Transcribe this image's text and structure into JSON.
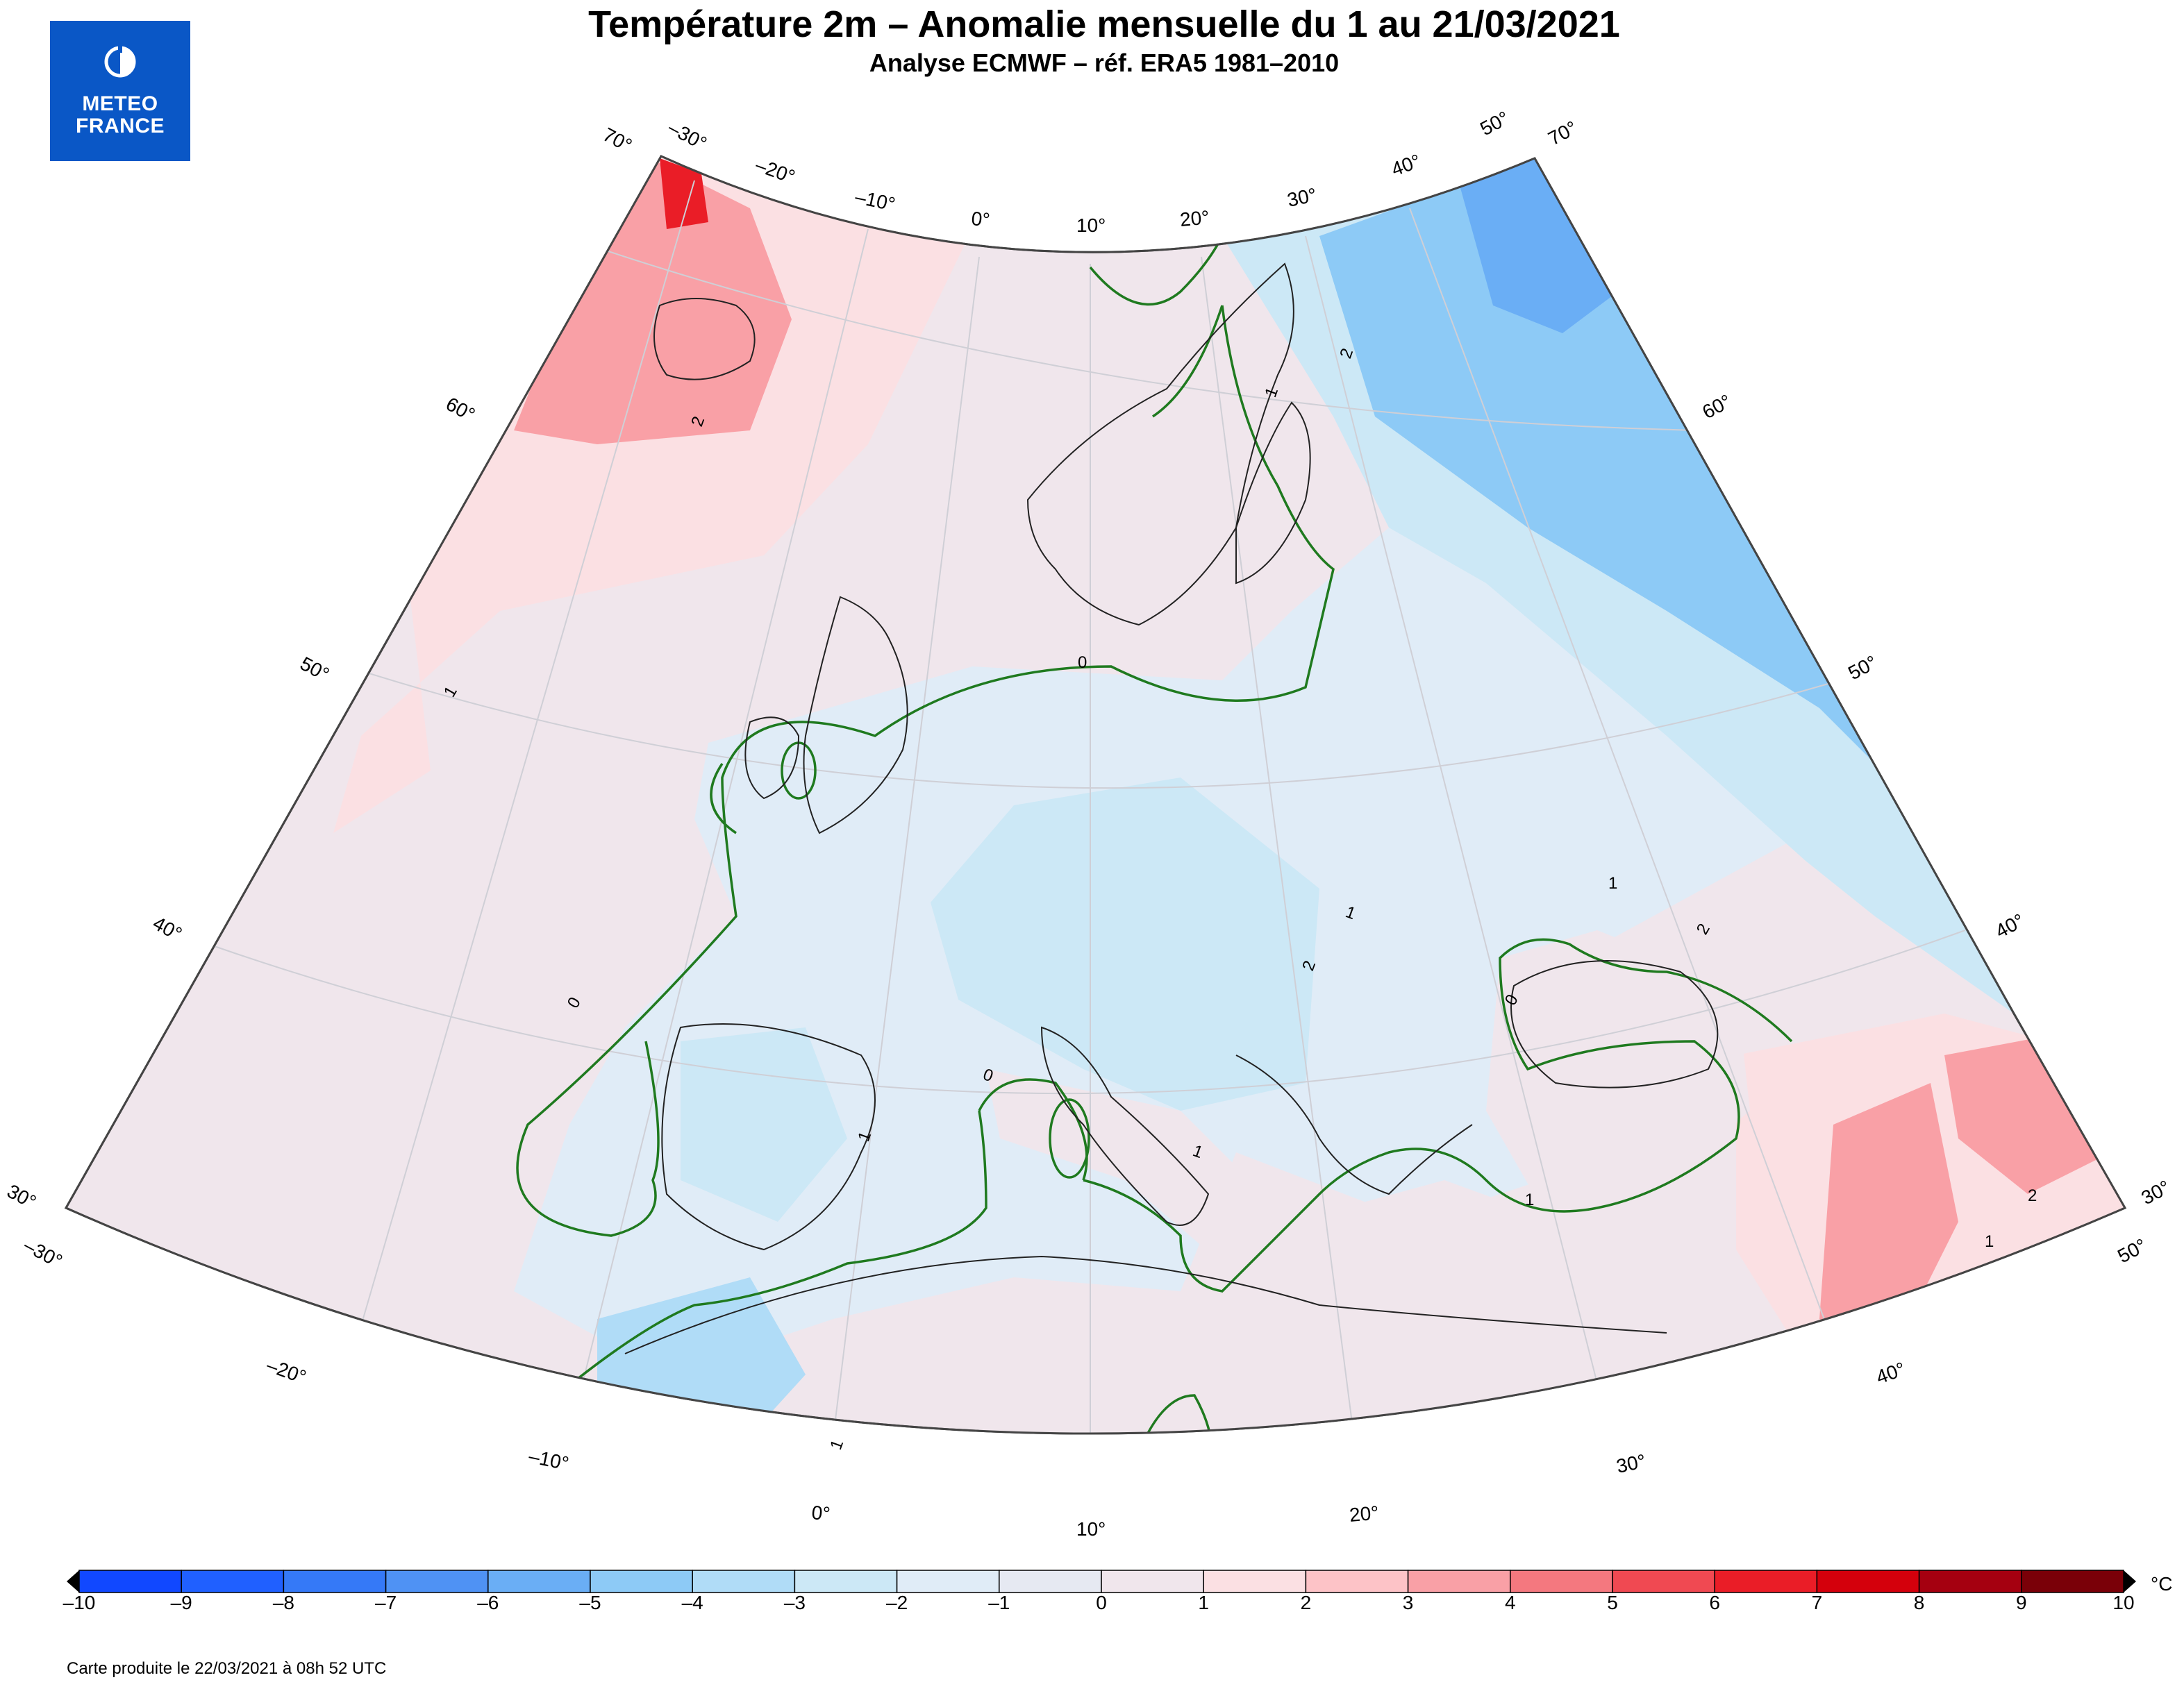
{
  "logo": {
    "line1": "METEO",
    "line2": "FRANCE"
  },
  "title": "Température 2m – Anomalie mensuelle du 1 au 21/03/2021",
  "subtitle": "Analyse ECMWF – réf. ERA5 1981–2010",
  "map": {
    "lon_labels_top": [
      "–30°",
      "–20°",
      "–10°",
      "0°",
      "10°",
      "20°",
      "30°",
      "40°",
      "50°"
    ],
    "lon_labels_bottom": [
      "–30°",
      "–20°",
      "–10°",
      "0°",
      "10°",
      "20°",
      "30°",
      "40°",
      "50°"
    ],
    "lat_labels_left": [
      "70°",
      "60°",
      "50°",
      "40°",
      "30°"
    ],
    "lat_labels_right": [
      "70°",
      "60°",
      "50°",
      "40°",
      "30°"
    ],
    "contour_labels": [
      "2",
      "1",
      "0",
      "2",
      "1",
      "0",
      "0",
      "1",
      "1",
      "1",
      "2",
      "2",
      "2",
      "1",
      "0",
      "1",
      "1",
      "1"
    ],
    "colors": {
      "zero_contour": "#1f7a1f",
      "neutral": "#f0e6ec",
      "cool": "#e0ecf7"
    }
  },
  "colorbar": {
    "ticks": [
      "–10",
      "–9",
      "–8",
      "–7",
      "–6",
      "–5",
      "–4",
      "–3",
      "–2",
      "–1",
      "0",
      "1",
      "2",
      "3",
      "4",
      "5",
      "6",
      "7",
      "8",
      "9",
      "10"
    ],
    "colors": [
      "#1148ff",
      "#2060ff",
      "#3579f7",
      "#4f92f4",
      "#6aaef5",
      "#8dcaf6",
      "#b0dcf7",
      "#cce8f6",
      "#e0ecf7",
      "#e6e9f2",
      "#f0e6ec",
      "#fbe0e3",
      "#fdc3c7",
      "#f9a0a6",
      "#f4787f",
      "#f04952",
      "#ea1d27",
      "#d4000c",
      "#a50010",
      "#7a0008"
    ],
    "unit": "°C"
  },
  "credit": "Carte produite le 22/03/2021 à 08h 52 UTC"
}
